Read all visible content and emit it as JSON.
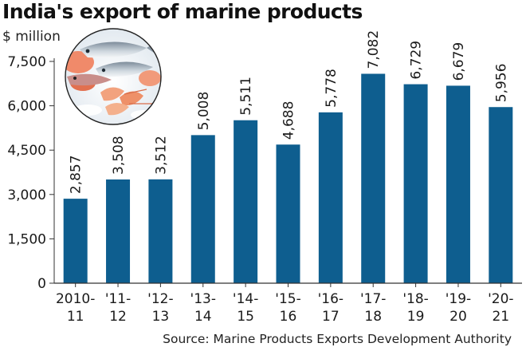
{
  "title": "India's export of marine products",
  "unit_label": "$ million",
  "source": "Source: Marine Products Exports Development Authority",
  "colors": {
    "bar": "#0e5e8f",
    "text": "#1a1a1a",
    "axis": "#333333"
  },
  "photo": {
    "icon": "seafood-photo"
  },
  "chart_data": {
    "type": "bar",
    "categories": [
      [
        "2010-",
        "11"
      ],
      [
        "'11-",
        "12"
      ],
      [
        "'12-",
        "13"
      ],
      [
        "'13-",
        "14"
      ],
      [
        "'14-",
        "15"
      ],
      [
        "'15-",
        "16"
      ],
      [
        "'16-",
        "17"
      ],
      [
        "'17-",
        "18"
      ],
      [
        "'18-",
        "19"
      ],
      [
        "'19-",
        "20"
      ],
      [
        "'20-",
        "21"
      ]
    ],
    "values": [
      2857,
      3508,
      3512,
      5008,
      5511,
      4688,
      5778,
      7082,
      6729,
      6679,
      5956
    ],
    "value_labels": [
      "2,857",
      "3,508",
      "3,512",
      "5,008",
      "5,511",
      "4,688",
      "5,778",
      "7,082",
      "6,729",
      "6,679",
      "5,956"
    ],
    "yticks": [
      0,
      1500,
      3000,
      4500,
      6000,
      7500
    ],
    "ytick_labels": [
      "0",
      "1,500",
      "3,000",
      "4,500",
      "6,000",
      "7,500"
    ],
    "ylim": [
      0,
      7500
    ],
    "grid": false,
    "legend": "none"
  }
}
